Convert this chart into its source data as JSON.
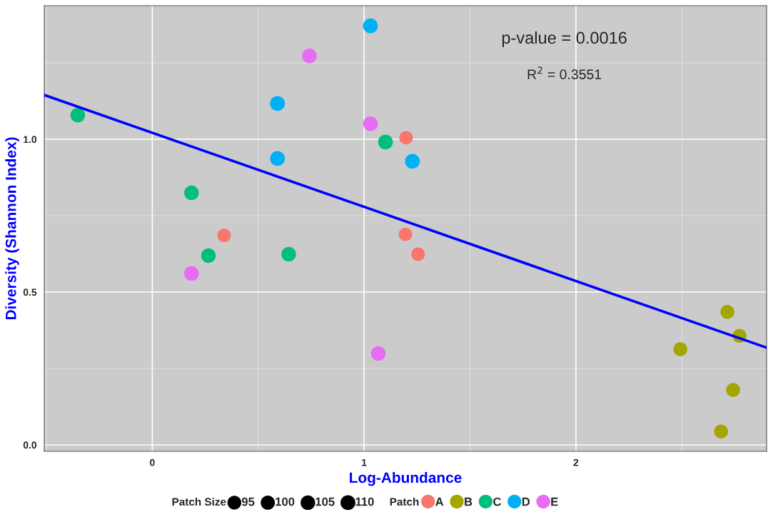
{
  "chart_data": {
    "type": "scatter",
    "xlabel": "Log-Abundance",
    "ylabel": "Diversity (Shannon Index)",
    "legend_title": "Patch",
    "annotations": [
      "p-value = 0.0016",
      "R$^{2}$ = 0.3551",
      "Patch Size"
    ],
    "size_legend": [
      95,
      100,
      105,
      110
    ],
    "series": [
      {
        "name": "A",
        "color": "#f8766d",
        "x": [
          1.198,
          0.339,
          1.195,
          1.255
        ],
        "values": [
          1.005,
          0.685,
          0.689,
          0.624
        ],
        "sizes": [
          91,
          91,
          91,
          91
        ]
      },
      {
        "name": "B",
        "color": "#a3a500",
        "x": [
          2.493,
          2.715,
          2.772,
          2.742,
          2.685
        ],
        "values": [
          0.313,
          0.435,
          0.357,
          0.18,
          0.044
        ],
        "sizes": [
          97,
          97,
          97,
          97,
          97
        ]
      },
      {
        "name": "C",
        "color": "#00bf7d",
        "x": [
          -0.352,
          0.185,
          0.265,
          0.644,
          1.101
        ],
        "values": [
          1.079,
          0.825,
          0.619,
          0.624,
          0.991
        ],
        "sizes": [
          107,
          107,
          107,
          107,
          107
        ]
      },
      {
        "name": "D",
        "color": "#00b0f6",
        "x": [
          1.03,
          0.591,
          0.591,
          1.228
        ],
        "values": [
          1.371,
          1.117,
          0.937,
          0.928
        ],
        "sizes": [
          110,
          110,
          110,
          110
        ]
      },
      {
        "name": "E",
        "color": "#e76bf3",
        "x": [
          0.742,
          1.03,
          0.185,
          1.067
        ],
        "values": [
          1.273,
          1.051,
          0.561,
          0.299
        ],
        "sizes": [
          107,
          107,
          107,
          107
        ]
      },
      {
        "type": "line",
        "marker": "none",
        "color": "#0000ff",
        "x": [
          -0.51,
          2.9
        ],
        "values": [
          1.145,
          0.318
        ]
      }
    ],
    "xlim": [
      -0.51,
      2.9
    ],
    "ylim": [
      -0.021,
      1.437
    ],
    "xticks": [
      0,
      1,
      2
    ],
    "yticks": [
      {
        "value": 0,
        "label": "0.0"
      },
      {
        "value": 0.5,
        "label": "0.5"
      },
      {
        "value": 1.0,
        "label": "1.0"
      }
    ],
    "grid": true,
    "legend": "bottom",
    "marker": "circle"
  }
}
